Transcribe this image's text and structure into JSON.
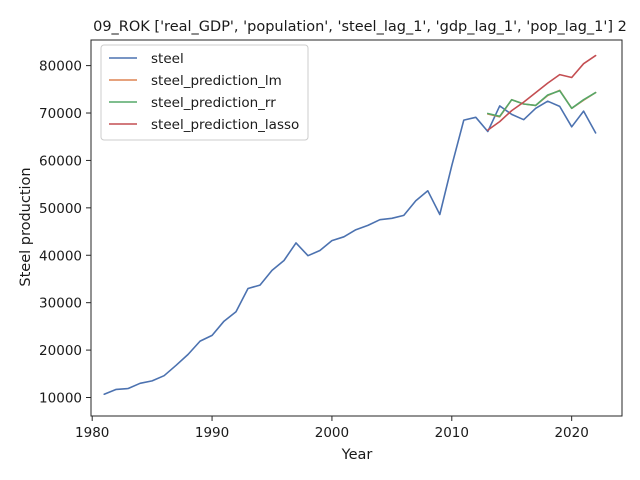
{
  "chart_data": {
    "type": "line",
    "title": "09_ROK ['real_GDP', 'population', 'steel_lag_1', 'gdp_lag_1', 'pop_lag_1'] 2",
    "xlabel": "Year",
    "ylabel": "Steel production",
    "xlim": [
      1979.9,
      2024.2
    ],
    "ylim": [
      6100,
      85400
    ],
    "xticks": [
      1980,
      1990,
      2000,
      2010,
      2020
    ],
    "yticks": [
      10000,
      20000,
      30000,
      40000,
      50000,
      60000,
      70000,
      80000
    ],
    "xtick_labels": [
      "1980",
      "1990",
      "2000",
      "2010",
      "2020"
    ],
    "ytick_labels": [
      "10000",
      "20000",
      "30000",
      "40000",
      "50000",
      "60000",
      "70000",
      "80000"
    ],
    "grid": false,
    "legend_position": "top-left",
    "series": [
      {
        "name": "steel",
        "color": "#4c72b0",
        "x": [
          1981,
          1982,
          1983,
          1984,
          1985,
          1986,
          1987,
          1988,
          1989,
          1990,
          1991,
          1992,
          1993,
          1994,
          1995,
          1996,
          1997,
          1998,
          1999,
          2000,
          2001,
          2002,
          2003,
          2004,
          2005,
          2006,
          2007,
          2008,
          2009,
          2010,
          2011,
          2012,
          2013,
          2014,
          2015,
          2016,
          2017,
          2018,
          2019,
          2020,
          2021,
          2022
        ],
        "y": [
          10700,
          11700,
          11900,
          13000,
          13500,
          14600,
          16800,
          19100,
          21900,
          23100,
          26100,
          28100,
          33000,
          33700,
          36800,
          38900,
          42600,
          39900,
          41000,
          43100,
          43900,
          45400,
          46300,
          47500,
          47800,
          48400,
          51500,
          53600,
          48600,
          58900,
          68500,
          69100,
          66100,
          71500,
          69700,
          68600,
          71000,
          72500,
          71400,
          67100,
          70400,
          65800
        ]
      },
      {
        "name": "steel_prediction_lm",
        "color": "#dd8452",
        "x": [
          2013,
          2014,
          2015,
          2016,
          2017,
          2018,
          2019,
          2020,
          2021,
          2022
        ],
        "y": [
          69800,
          69200,
          72800,
          71900,
          71600,
          73700,
          74800,
          71000,
          72700,
          74300
        ]
      },
      {
        "name": "steel_prediction_rr",
        "color": "#55a868",
        "x": [
          2013,
          2014,
          2015,
          2016,
          2017,
          2018,
          2019,
          2020,
          2021,
          2022
        ],
        "y": [
          69900,
          69300,
          72800,
          71900,
          71600,
          73800,
          74700,
          71000,
          72800,
          74300
        ]
      },
      {
        "name": "steel_prediction_lasso",
        "color": "#c44e52",
        "x": [
          2013,
          2014,
          2015,
          2016,
          2017,
          2018,
          2019,
          2020,
          2021,
          2022
        ],
        "y": [
          66400,
          68200,
          70500,
          72300,
          74300,
          76300,
          78100,
          77500,
          80400,
          82100
        ]
      }
    ]
  }
}
